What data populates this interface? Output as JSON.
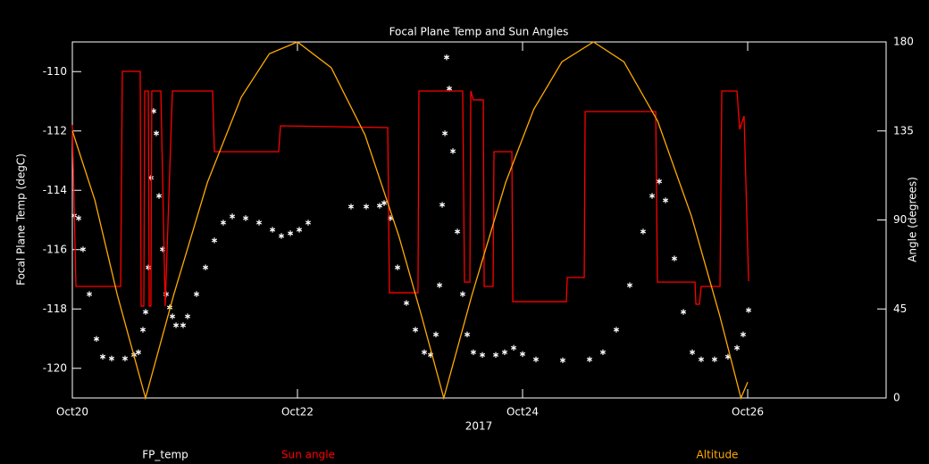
{
  "chart_data": {
    "type": "line",
    "title": "Focal Plane Temp and Sun Angles",
    "x_label": "2017",
    "y_label": "Focal Plane Temp (degC)",
    "y2_label": "Angle (degrees)",
    "xlim": [
      0,
      7.23
    ],
    "xticks": [
      {
        "value": 0,
        "label": "Oct20"
      },
      {
        "value": 2,
        "label": "Oct22"
      },
      {
        "value": 4,
        "label": "Oct24"
      },
      {
        "value": 6,
        "label": "Oct26"
      }
    ],
    "ylim": [
      -121,
      -109
    ],
    "yticks": [
      -120,
      -118,
      -116,
      -114,
      -112,
      -110
    ],
    "y2lim": [
      0,
      180
    ],
    "y2ticks": [
      0,
      45,
      90,
      135,
      180
    ],
    "series": [
      {
        "name": "FP_temp",
        "color": "#ffffff",
        "style": "markers",
        "x": [
          0.016,
          0.056,
          0.095,
          0.151,
          0.214,
          0.27,
          0.349,
          0.468,
          0.548,
          0.587,
          0.627,
          0.651,
          0.675,
          0.698,
          0.722,
          0.746,
          0.77,
          0.802,
          0.833,
          0.865,
          0.889,
          0.921,
          0.984,
          1.024,
          1.103,
          1.183,
          1.262,
          1.341,
          1.421,
          1.54,
          1.659,
          1.778,
          1.857,
          1.937,
          2.016,
          2.095,
          2.3,
          2.476,
          2.611,
          2.73,
          2.77,
          2.825,
          2.889,
          2.968,
          3.048,
          3.127,
          3.183,
          3.23,
          3.262,
          3.286,
          3.31,
          3.325,
          3.349,
          3.381,
          3.421,
          3.468,
          3.508,
          3.563,
          3.643,
          3.762,
          3.841,
          3.921,
          4.0,
          4.119,
          4.357,
          4.595,
          4.714,
          4.833,
          4.952,
          5.071,
          5.151,
          5.214,
          5.27,
          5.349,
          5.429,
          5.508,
          5.587,
          5.706,
          5.825,
          5.905,
          5.96,
          6.008
        ],
        "values": [
          -114.85,
          -114.94,
          -115.99,
          -117.5,
          -119.01,
          -119.61,
          -119.67,
          -119.67,
          -119.55,
          -119.46,
          -118.7,
          -118.1,
          -116.6,
          -113.58,
          -111.33,
          -112.08,
          -114.19,
          -115.99,
          -117.5,
          -117.95,
          -118.25,
          -118.55,
          -118.55,
          -118.25,
          -117.5,
          -116.6,
          -115.69,
          -115.09,
          -114.88,
          -114.94,
          -115.09,
          -115.33,
          -115.54,
          -115.45,
          -115.33,
          -115.09,
          null,
          -114.55,
          -114.55,
          -114.52,
          -114.43,
          -114.94,
          -116.6,
          -117.8,
          -118.7,
          -119.46,
          -119.55,
          -118.86,
          -117.2,
          -114.49,
          -112.08,
          -109.52,
          -110.57,
          -112.68,
          -115.39,
          -117.5,
          -118.86,
          -119.46,
          -119.55,
          -119.55,
          -119.46,
          -119.31,
          -119.52,
          -119.7,
          -119.73,
          -119.7,
          -119.46,
          -118.7,
          -117.2,
          -115.39,
          -114.19,
          -113.7,
          -114.34,
          -116.3,
          -118.1,
          -119.46,
          -119.7,
          -119.7,
          -119.61,
          -119.31,
          -118.86,
          -118.04
        ]
      },
      {
        "name": "Sun angle",
        "color": "#ff0000",
        "style": "line",
        "axis": "y2",
        "x": [
          0,
          0.032,
          0.429,
          0.444,
          0.603,
          0.611,
          0.635,
          0.643,
          0.675,
          0.683,
          0.698,
          0.706,
          0.786,
          0.825,
          0.889,
          1.246,
          1.262,
          1.833,
          1.849,
          2.802,
          2.817,
          3.071,
          3.079,
          3.468,
          3.484,
          3.532,
          3.54,
          3.563,
          3.651,
          3.659,
          3.738,
          3.746,
          3.905,
          3.913,
          4.389,
          4.397,
          4.548,
          4.556,
          5.183,
          5.198,
          5.532,
          5.54,
          5.571,
          5.587,
          5.754,
          5.77,
          5.905,
          5.929,
          5.968,
          6.008
        ],
        "values": [
          138.0,
          56.4,
          56.4,
          165.1,
          165.1,
          46.5,
          46.5,
          155.2,
          155.2,
          46.5,
          46.5,
          155.2,
          155.2,
          46.5,
          155.2,
          155.2,
          124.5,
          124.5,
          137.6,
          136.7,
          53.2,
          53.2,
          155.2,
          155.2,
          58.6,
          58.6,
          155.2,
          150.7,
          150.7,
          56.4,
          56.4,
          124.5,
          124.5,
          48.7,
          48.7,
          60.9,
          60.9,
          144.8,
          144.8,
          58.6,
          58.6,
          47.4,
          47.4,
          56.4,
          56.4,
          155.2,
          155.2,
          135.8,
          142.5,
          59.1
        ]
      },
      {
        "name": "Altitude",
        "color": "#ffaa00",
        "style": "line",
        "axis": "y2",
        "x": [
          0,
          0.2,
          0.4,
          0.65,
          0.9,
          1.2,
          1.5,
          1.75,
          2.0,
          2.3,
          2.6,
          2.9,
          3.1,
          3.3,
          3.55,
          3.85,
          4.1,
          4.35,
          4.63,
          4.9,
          5.2,
          5.5,
          5.75,
          5.94,
          6.0
        ],
        "values": [
          135,
          100,
          52,
          0,
          52,
          109,
          152,
          174,
          180,
          167,
          133,
          82,
          42,
          0,
          52,
          109,
          146,
          170,
          180,
          170,
          140,
          92,
          42,
          0,
          8
        ]
      }
    ]
  }
}
